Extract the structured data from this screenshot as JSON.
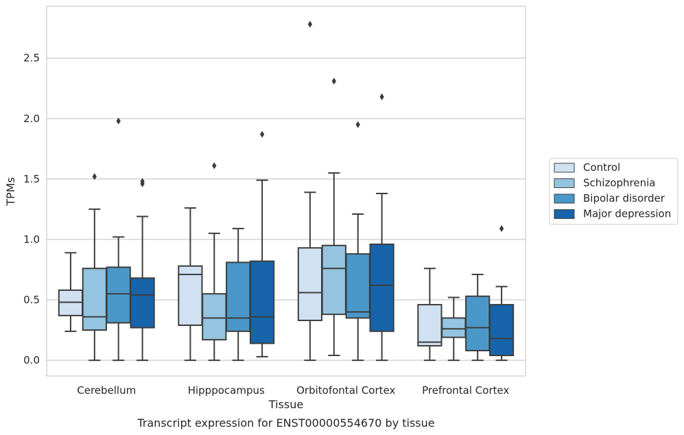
{
  "caption": "Transcript expression for ENST00000554670 by tissue",
  "chart_data": {
    "type": "box",
    "xlabel": "Tissue",
    "ylabel": "TPMs",
    "ylim": [
      -0.13,
      2.93
    ],
    "yticks": [
      0.0,
      0.5,
      1.0,
      1.5,
      2.0,
      2.5
    ],
    "ytick_labels": [
      "0.0",
      "0.5",
      "1.0",
      "1.5",
      "2.0",
      "2.5"
    ],
    "grid": "horizontal",
    "legend_position": "right",
    "categories": [
      "Cerebellum",
      "Hipppocampus",
      "Orbitofontal Cortex",
      "Prefrontal Cortex"
    ],
    "series": [
      {
        "name": "Control",
        "color": "#d0e1f2",
        "boxes": [
          {
            "whislo": 0.24,
            "q1": 0.37,
            "med": 0.48,
            "q3": 0.58,
            "whishi": 0.89,
            "fliers": []
          },
          {
            "whislo": 0.0,
            "q1": 0.29,
            "med": 0.71,
            "q3": 0.78,
            "whishi": 1.26,
            "fliers": []
          },
          {
            "whislo": 0.0,
            "q1": 0.33,
            "med": 0.56,
            "q3": 0.93,
            "whishi": 1.39,
            "fliers": [
              2.78
            ]
          },
          {
            "whislo": 0.0,
            "q1": 0.12,
            "med": 0.15,
            "q3": 0.46,
            "whishi": 0.76,
            "fliers": []
          }
        ]
      },
      {
        "name": "Schizophrenia",
        "color": "#94c4df",
        "boxes": [
          {
            "whislo": 0.0,
            "q1": 0.25,
            "med": 0.36,
            "q3": 0.76,
            "whishi": 1.25,
            "fliers": [
              1.52
            ]
          },
          {
            "whislo": 0.0,
            "q1": 0.17,
            "med": 0.35,
            "q3": 0.55,
            "whishi": 1.05,
            "fliers": [
              1.61
            ]
          },
          {
            "whislo": 0.04,
            "q1": 0.38,
            "med": 0.76,
            "q3": 0.95,
            "whishi": 1.55,
            "fliers": [
              2.31
            ]
          },
          {
            "whislo": 0.0,
            "q1": 0.19,
            "med": 0.26,
            "q3": 0.35,
            "whishi": 0.52,
            "fliers": []
          }
        ]
      },
      {
        "name": "Bipolar disorder",
        "color": "#4a98c9",
        "boxes": [
          {
            "whislo": 0.0,
            "q1": 0.31,
            "med": 0.55,
            "q3": 0.77,
            "whishi": 1.02,
            "fliers": [
              1.98
            ]
          },
          {
            "whislo": 0.0,
            "q1": 0.24,
            "med": 0.35,
            "q3": 0.81,
            "whishi": 1.09,
            "fliers": []
          },
          {
            "whislo": 0.0,
            "q1": 0.35,
            "med": 0.4,
            "q3": 0.88,
            "whishi": 1.21,
            "fliers": [
              1.95
            ]
          },
          {
            "whislo": 0.0,
            "q1": 0.08,
            "med": 0.27,
            "q3": 0.53,
            "whishi": 0.71,
            "fliers": []
          }
        ]
      },
      {
        "name": "Major depression",
        "color": "#1764ab",
        "boxes": [
          {
            "whislo": 0.0,
            "q1": 0.27,
            "med": 0.54,
            "q3": 0.68,
            "whishi": 1.19,
            "fliers": [
              1.46,
              1.48
            ]
          },
          {
            "whislo": 0.03,
            "q1": 0.14,
            "med": 0.36,
            "q3": 0.82,
            "whishi": 1.49,
            "fliers": [
              1.87
            ]
          },
          {
            "whislo": 0.0,
            "q1": 0.24,
            "med": 0.62,
            "q3": 0.96,
            "whishi": 1.38,
            "fliers": [
              2.18
            ]
          },
          {
            "whislo": 0.0,
            "q1": 0.04,
            "med": 0.18,
            "q3": 0.46,
            "whishi": 0.61,
            "fliers": [
              1.09
            ]
          }
        ]
      }
    ]
  }
}
